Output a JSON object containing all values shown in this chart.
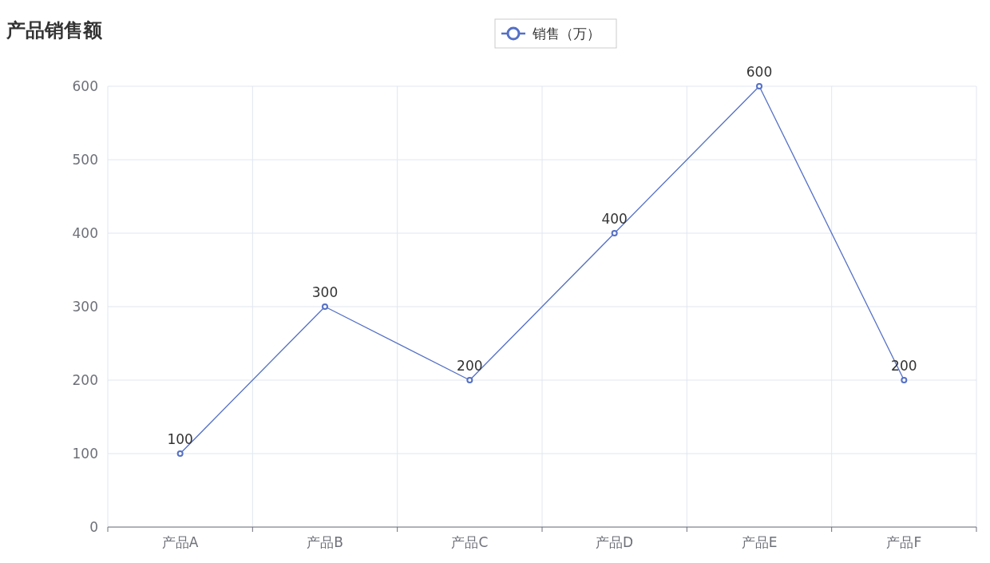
{
  "chart_data": {
    "type": "line",
    "title": "产品销售额",
    "categories": [
      "产品A",
      "产品B",
      "产品C",
      "产品D",
      "产品E",
      "产品F"
    ],
    "series": [
      {
        "name": "销售（万）",
        "color": "#5470c6",
        "values": [
          100,
          300,
          200,
          400,
          600,
          200
        ]
      }
    ],
    "ylim": [
      0,
      600
    ],
    "yticks": [
      0,
      100,
      200,
      300,
      400,
      500,
      600
    ],
    "grid": true,
    "legend": "top",
    "marker": "circle",
    "data_labels": true
  }
}
